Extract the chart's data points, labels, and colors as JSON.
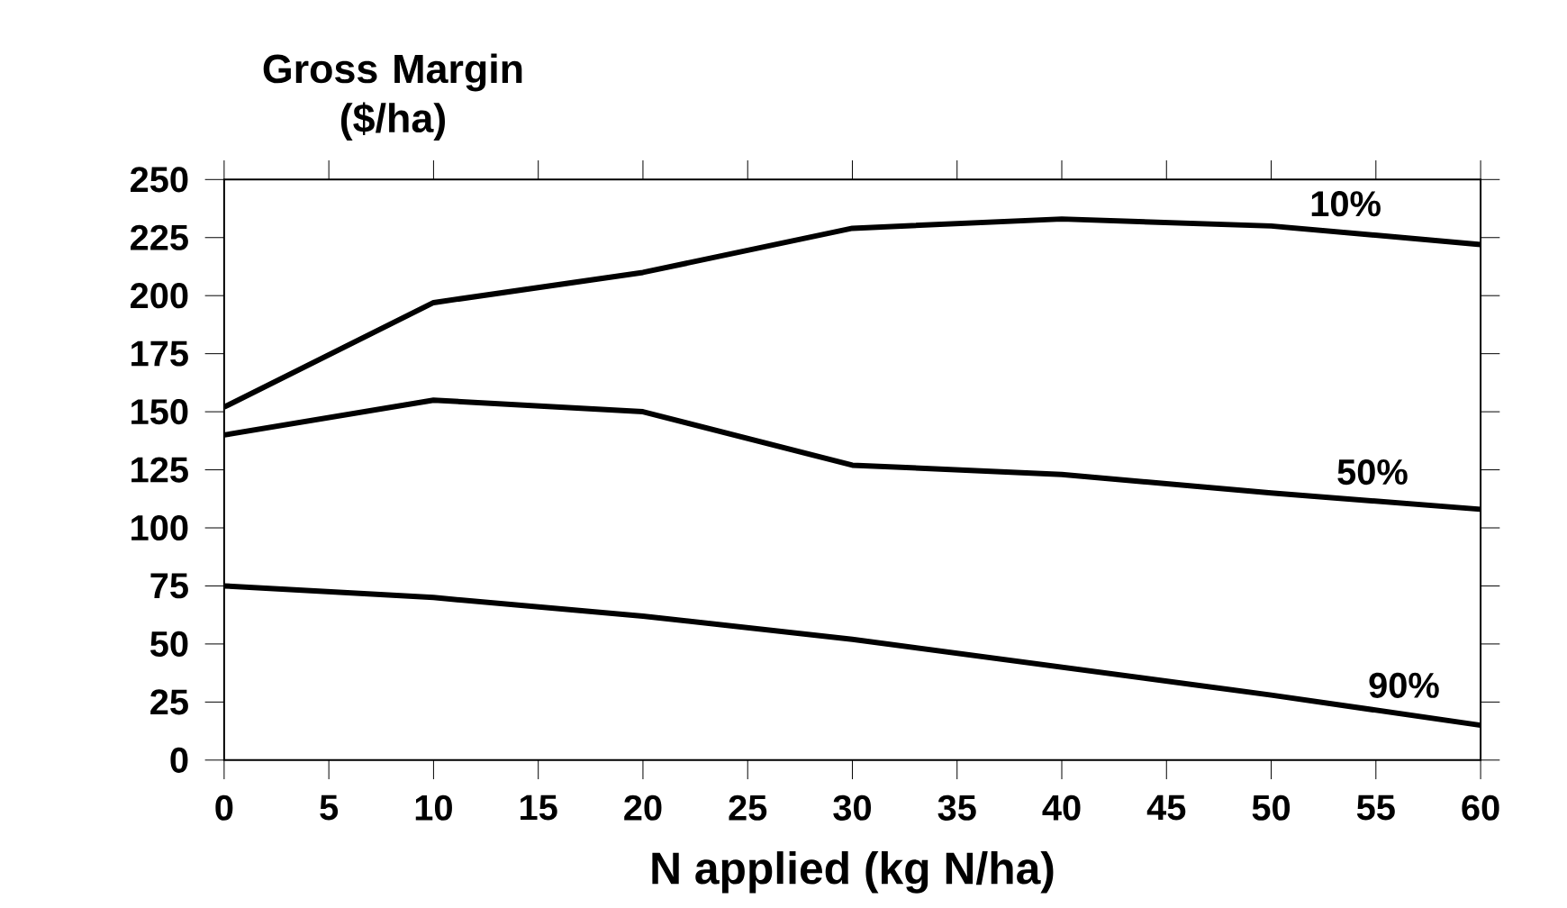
{
  "chart_data": {
    "type": "line",
    "xlabel": "N applied (kg N/ha)",
    "ylabel": "Gross Margin ($/ha)",
    "x": [
      0,
      10,
      20,
      30,
      40,
      50,
      60
    ],
    "series": [
      {
        "name": "10%",
        "color": "#000000",
        "values": [
          152,
          197,
          210,
          229,
          233,
          230,
          222
        ]
      },
      {
        "name": "50%",
        "color": "#000000",
        "values": [
          140,
          155,
          150,
          127,
          123,
          115,
          108
        ]
      },
      {
        "name": "90%",
        "color": "#000000",
        "values": [
          75,
          70,
          62,
          52,
          40,
          28,
          15
        ]
      }
    ],
    "xlim": [
      0,
      60
    ],
    "xticks": [
      0,
      5,
      10,
      15,
      20,
      25,
      30,
      35,
      40,
      45,
      50,
      55,
      60
    ],
    "ylim": [
      0,
      250
    ],
    "yticks": [
      0,
      25,
      50,
      75,
      100,
      125,
      150,
      175,
      200,
      225,
      250
    ],
    "grid": false,
    "legend": "right",
    "marker": "none",
    "line_style": "solid"
  }
}
